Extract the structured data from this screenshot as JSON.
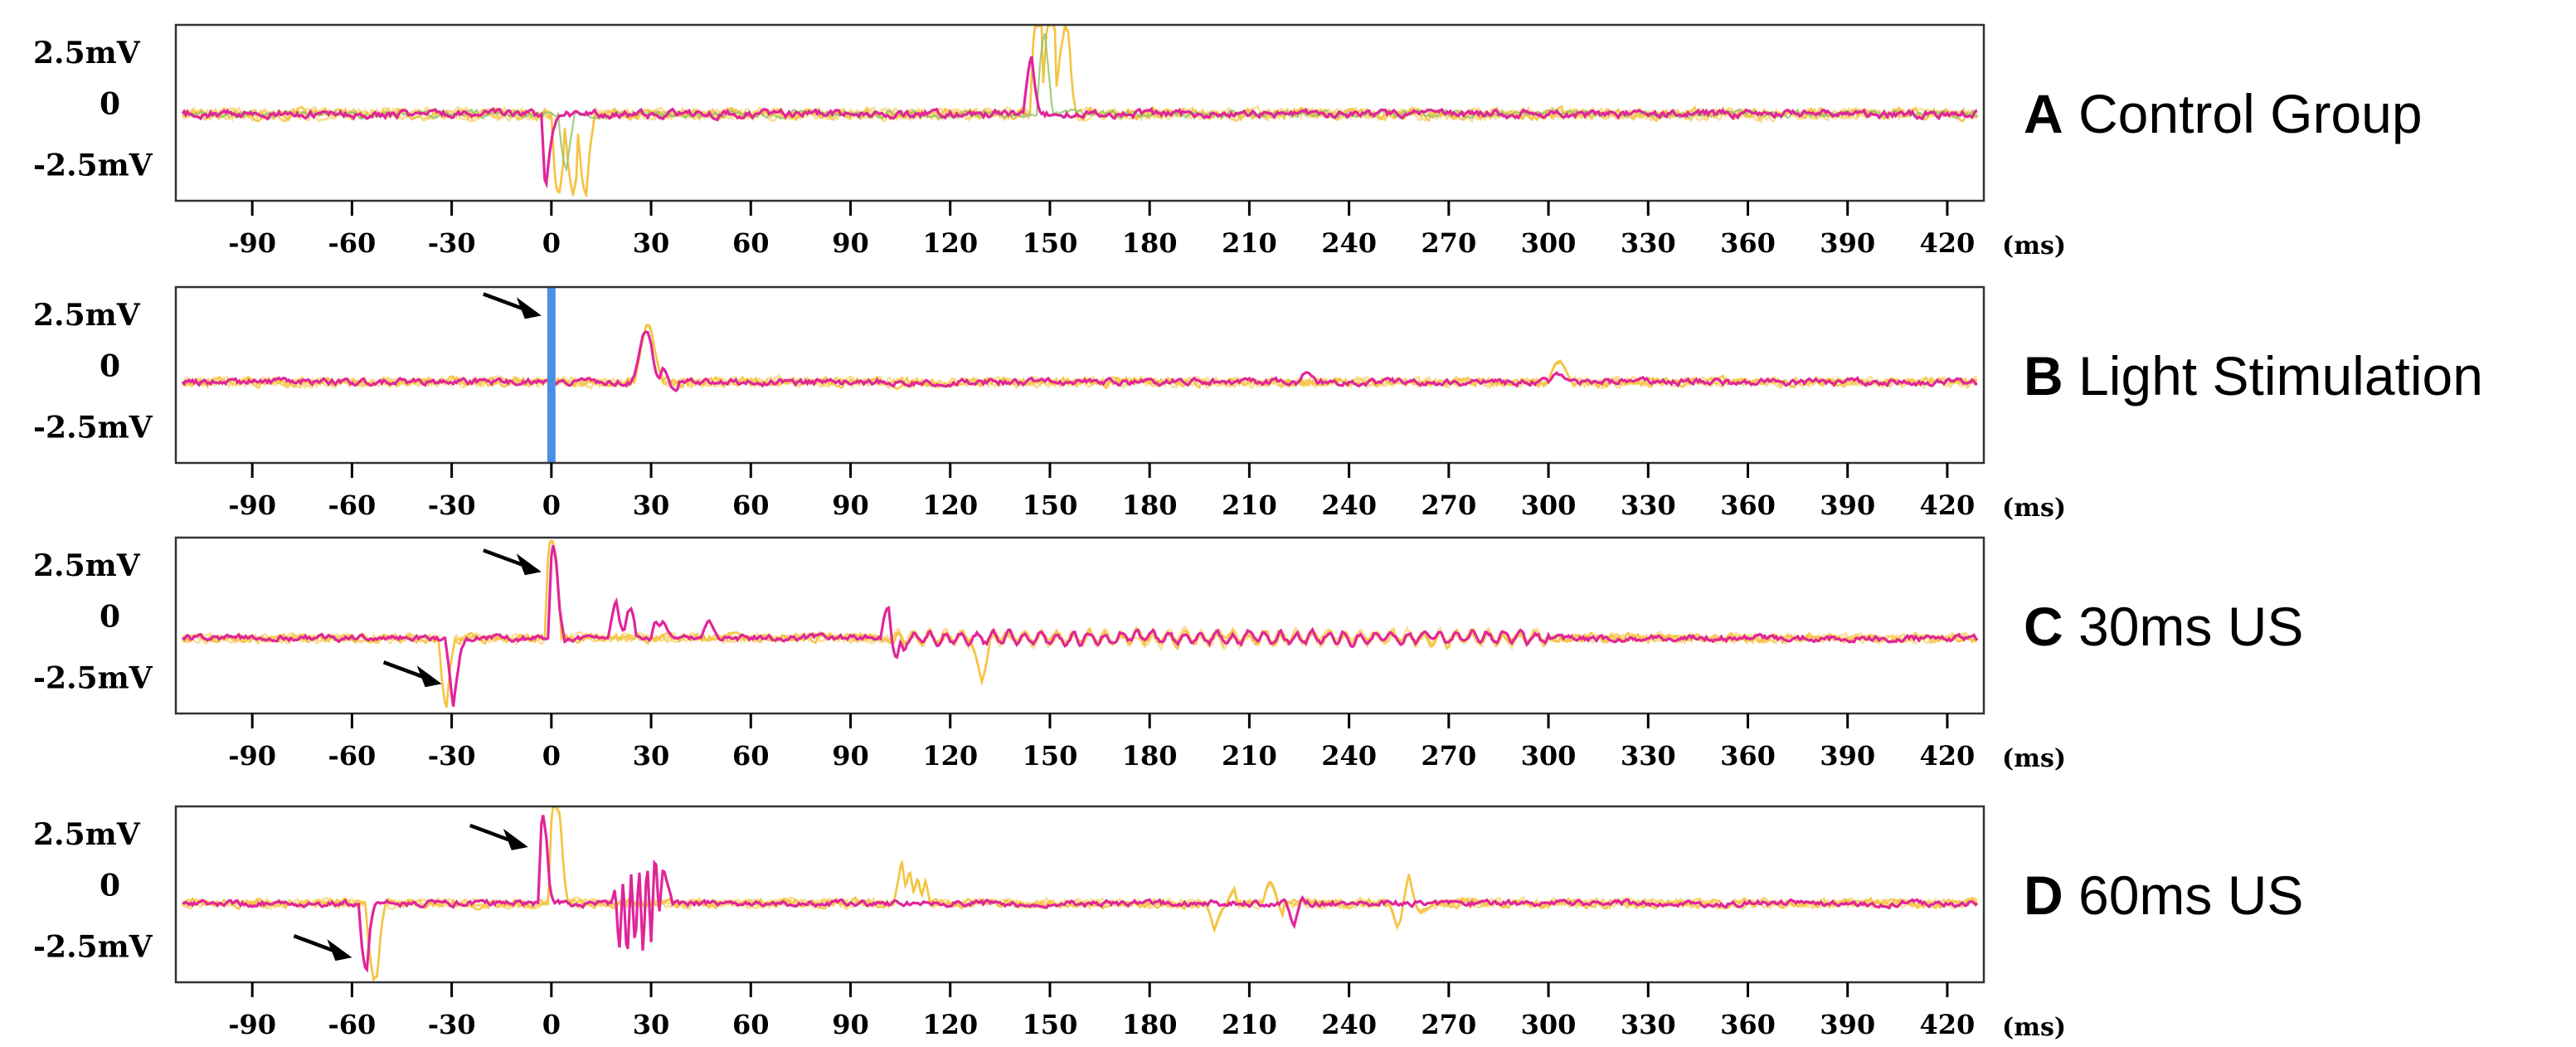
{
  "colors": {
    "trace_main": "#e0259a",
    "trace_overlay": "#f5c242",
    "trace_overlay_alt": "#8fbf6a",
    "stimulus_bar": "#4a8fe7",
    "axis": "#333333"
  },
  "chart_data": [
    {
      "type": "line",
      "panel": "A",
      "title": "Control Group",
      "xunit": "(ms)",
      "yticks": [
        "2.5mV",
        "0",
        "-2.5mV"
      ],
      "xticks": [
        -90,
        -60,
        -30,
        0,
        30,
        60,
        90,
        120,
        150,
        180,
        210,
        240,
        270,
        300,
        330,
        360,
        390,
        420
      ],
      "xlim": [
        -113,
        431
      ],
      "ylim": [
        -4.2,
        3.3
      ],
      "baseline": -0.5,
      "noise": 0.12,
      "stimulus_bar": null,
      "arrows": [],
      "main_events": [
        {
          "x": -3,
          "values": [
            -0.5,
            -3.8,
            -2.2,
            -1.2,
            -0.7,
            -0.55
          ]
        },
        {
          "x": 142,
          "values": [
            -0.5,
            1.0,
            2.1,
            0.6,
            -0.4
          ]
        }
      ],
      "overlay_events": [
        {
          "x": 0,
          "values": [
            -0.5,
            -3.5,
            -3.9,
            -2.5,
            -1.0,
            -0.6
          ]
        },
        {
          "x": 4,
          "values": [
            -0.5,
            -2.8,
            -4.0,
            -3.2,
            -1.5,
            -0.6
          ]
        },
        {
          "x": 8,
          "values": [
            -0.5,
            -3.0,
            -4.1,
            -2.0,
            -0.8
          ]
        },
        {
          "x": 144,
          "values": [
            -0.5,
            3.2,
            3.3,
            3.3,
            2.0,
            0.0,
            -0.5
          ]
        },
        {
          "x": 148,
          "values": [
            -0.5,
            2.6,
            3.3,
            3.1,
            1.2,
            -0.5
          ]
        },
        {
          "x": 152,
          "values": [
            -0.5,
            1.8,
            3.3,
            3.0,
            0.5,
            -0.5
          ]
        }
      ],
      "alt_events": [
        {
          "x": 2,
          "values": [
            -0.5,
            -2.2,
            -3.0,
            -1.8,
            -0.7
          ]
        },
        {
          "x": 146,
          "values": [
            -0.5,
            2.0,
            3.1,
            1.4,
            -0.5
          ]
        }
      ]
    },
    {
      "type": "line",
      "panel": "B",
      "title": "Light Stimulation",
      "xunit": "(ms)",
      "yticks": [
        "2.5mV",
        "0",
        "-2.5mV"
      ],
      "xticks": [
        -90,
        -60,
        -30,
        0,
        30,
        60,
        90,
        120,
        150,
        180,
        210,
        240,
        270,
        300,
        330,
        360,
        390,
        420
      ],
      "xlim": [
        -113,
        431
      ],
      "ylim": [
        -3.4,
        4.0
      ],
      "baseline": 0,
      "noise": 0.1,
      "stimulus_bar": 0,
      "arrows": [
        {
          "x": 0,
          "y": 2.8
        }
      ],
      "main_events": [
        {
          "x": 24,
          "values": [
            0,
            0.4,
            1.2,
            2.0,
            2.2,
            1.6,
            0.5,
            0.1,
            0.6,
            0.3,
            -0.2,
            -0.4,
            -0.3
          ]
        },
        {
          "x": 225,
          "values": [
            0,
            0.35,
            0.45,
            0.3,
            0.1
          ]
        },
        {
          "x": 300,
          "values": [
            0,
            0.25,
            0.35,
            0.3,
            0.2,
            0.1
          ]
        }
      ],
      "overlay_events": [
        {
          "x": 25,
          "values": [
            0,
            0.8,
            1.8,
            2.4,
            2.3,
            1.4,
            0.6,
            0.2
          ]
        },
        {
          "x": 300,
          "values": [
            0,
            0.5,
            0.8,
            0.9,
            0.6,
            0.3,
            0
          ]
        }
      ],
      "alt_events": []
    },
    {
      "type": "line",
      "panel": "C",
      "title": "30ms US",
      "xunit": "(ms)",
      "yticks": [
        "2.5mV",
        "0",
        "-2.5mV"
      ],
      "xticks": [
        -90,
        -60,
        -30,
        0,
        30,
        60,
        90,
        120,
        150,
        180,
        210,
        240,
        270,
        300,
        330,
        360,
        390,
        420
      ],
      "xlim": [
        -113,
        431
      ],
      "ylim": [
        -3.6,
        4.1
      ],
      "baseline": -0.3,
      "noise": 0.1,
      "stimulus_bar": null,
      "arrows": [
        {
          "x": 0,
          "y": 2.6
        },
        {
          "x": -30,
          "y": -2.3
        }
      ],
      "main_events": [
        {
          "x": -32,
          "values": [
            -0.3,
            -1.6,
            -3.4,
            -2.0,
            -0.8,
            -0.4
          ]
        },
        {
          "x": -1,
          "values": [
            -0.3,
            4.0,
            3.2,
            0.8,
            -0.2
          ]
        },
        {
          "x": 17,
          "values": [
            -0.3,
            0.6,
            1.4,
            0.4,
            -0.1,
            0.8,
            1.0,
            0.1
          ]
        },
        {
          "x": 30,
          "values": [
            -0.3,
            0.5,
            0.2,
            0.4,
            0.1,
            -0.2
          ]
        },
        {
          "x": 45,
          "values": [
            -0.3,
            0.2,
            0.5,
            0.2,
            -0.2
          ]
        },
        {
          "x": 99,
          "values": [
            -0.3,
            0.8,
            1.2,
            -0.6,
            -1.3,
            -0.5,
            -0.8,
            -0.3
          ]
        }
      ],
      "overlay_events": [
        {
          "x": -34,
          "values": [
            -0.3,
            -2.4,
            -3.5,
            -1.5,
            -0.5
          ]
        },
        {
          "x": -2,
          "values": [
            -0.3,
            3.8,
            4.0,
            2.6,
            0.5
          ]
        },
        {
          "x": 126,
          "values": [
            -0.3,
            -0.9,
            -1.6,
            -2.2,
            -1.4,
            -0.4
          ]
        }
      ],
      "alt_events": [],
      "oscillation": {
        "from": 103,
        "to": 300,
        "period": 4.8,
        "amplitude": 0.22
      }
    },
    {
      "type": "line",
      "panel": "D",
      "title": "60ms US",
      "xunit": "(ms)",
      "yticks": [
        "2.5mV",
        "0",
        "-2.5mV"
      ],
      "xticks": [
        -90,
        -60,
        -30,
        0,
        30,
        60,
        90,
        120,
        150,
        180,
        210,
        240,
        270,
        300,
        330,
        360,
        390,
        420
      ],
      "xlim": [
        -113,
        431
      ],
      "ylim": [
        -3.6,
        4.2
      ],
      "baseline": -0.1,
      "noise": 0.1,
      "stimulus_bar": null,
      "arrows": [
        {
          "x": -4,
          "y": 2.4
        },
        {
          "x": -57,
          "y": -2.5
        }
      ],
      "main_events": [
        {
          "x": -58,
          "values": [
            -0.1,
            -2.4,
            -3.2,
            -1.0,
            -0.2
          ]
        },
        {
          "x": -4,
          "values": [
            -0.1,
            4.1,
            3.0,
            0.5,
            -0.1
          ]
        },
        {
          "x": 18,
          "values": [
            -0.1,
            0.6,
            -2.4,
            1.0,
            -2.8,
            1.2,
            -2.2,
            1.6,
            -2.6,
            2.0,
            -1.8,
            2.4,
            -0.6,
            1.5,
            0.8,
            0.2
          ]
        },
        {
          "x": 221,
          "values": [
            -0.1,
            -0.6,
            -1.2,
            -0.4,
            0.2,
            -0.1
          ]
        }
      ],
      "overlay_events": [
        {
          "x": -56,
          "values": [
            -0.1,
            -2.2,
            -3.5,
            -3.4,
            -1.2,
            -0.2
          ]
        },
        {
          "x": -1,
          "values": [
            -0.1,
            4.2,
            4.2,
            3.8,
            1.2,
            -0.1
          ]
        },
        {
          "x": 103,
          "values": [
            -0.1,
            0.8,
            1.8,
            0.6,
            1.4,
            0.4,
            1.0,
            0.2,
            0.9,
            0.0
          ]
        },
        {
          "x": 197,
          "values": [
            -0.1,
            -0.6,
            -1.3,
            -0.8,
            -0.4,
            -0.2,
            0.2,
            0.6,
            -0.2
          ]
        },
        {
          "x": 214,
          "values": [
            -0.1,
            0.6,
            0.9,
            0.5,
            -0.2,
            -0.6
          ]
        },
        {
          "x": 252,
          "values": [
            -0.1,
            -0.5,
            -1.2,
            -0.8,
            0.3,
            1.2,
            0.4,
            -0.3,
            -0.5,
            -0.4,
            -0.3,
            -0.1
          ]
        }
      ],
      "alt_events": []
    }
  ]
}
